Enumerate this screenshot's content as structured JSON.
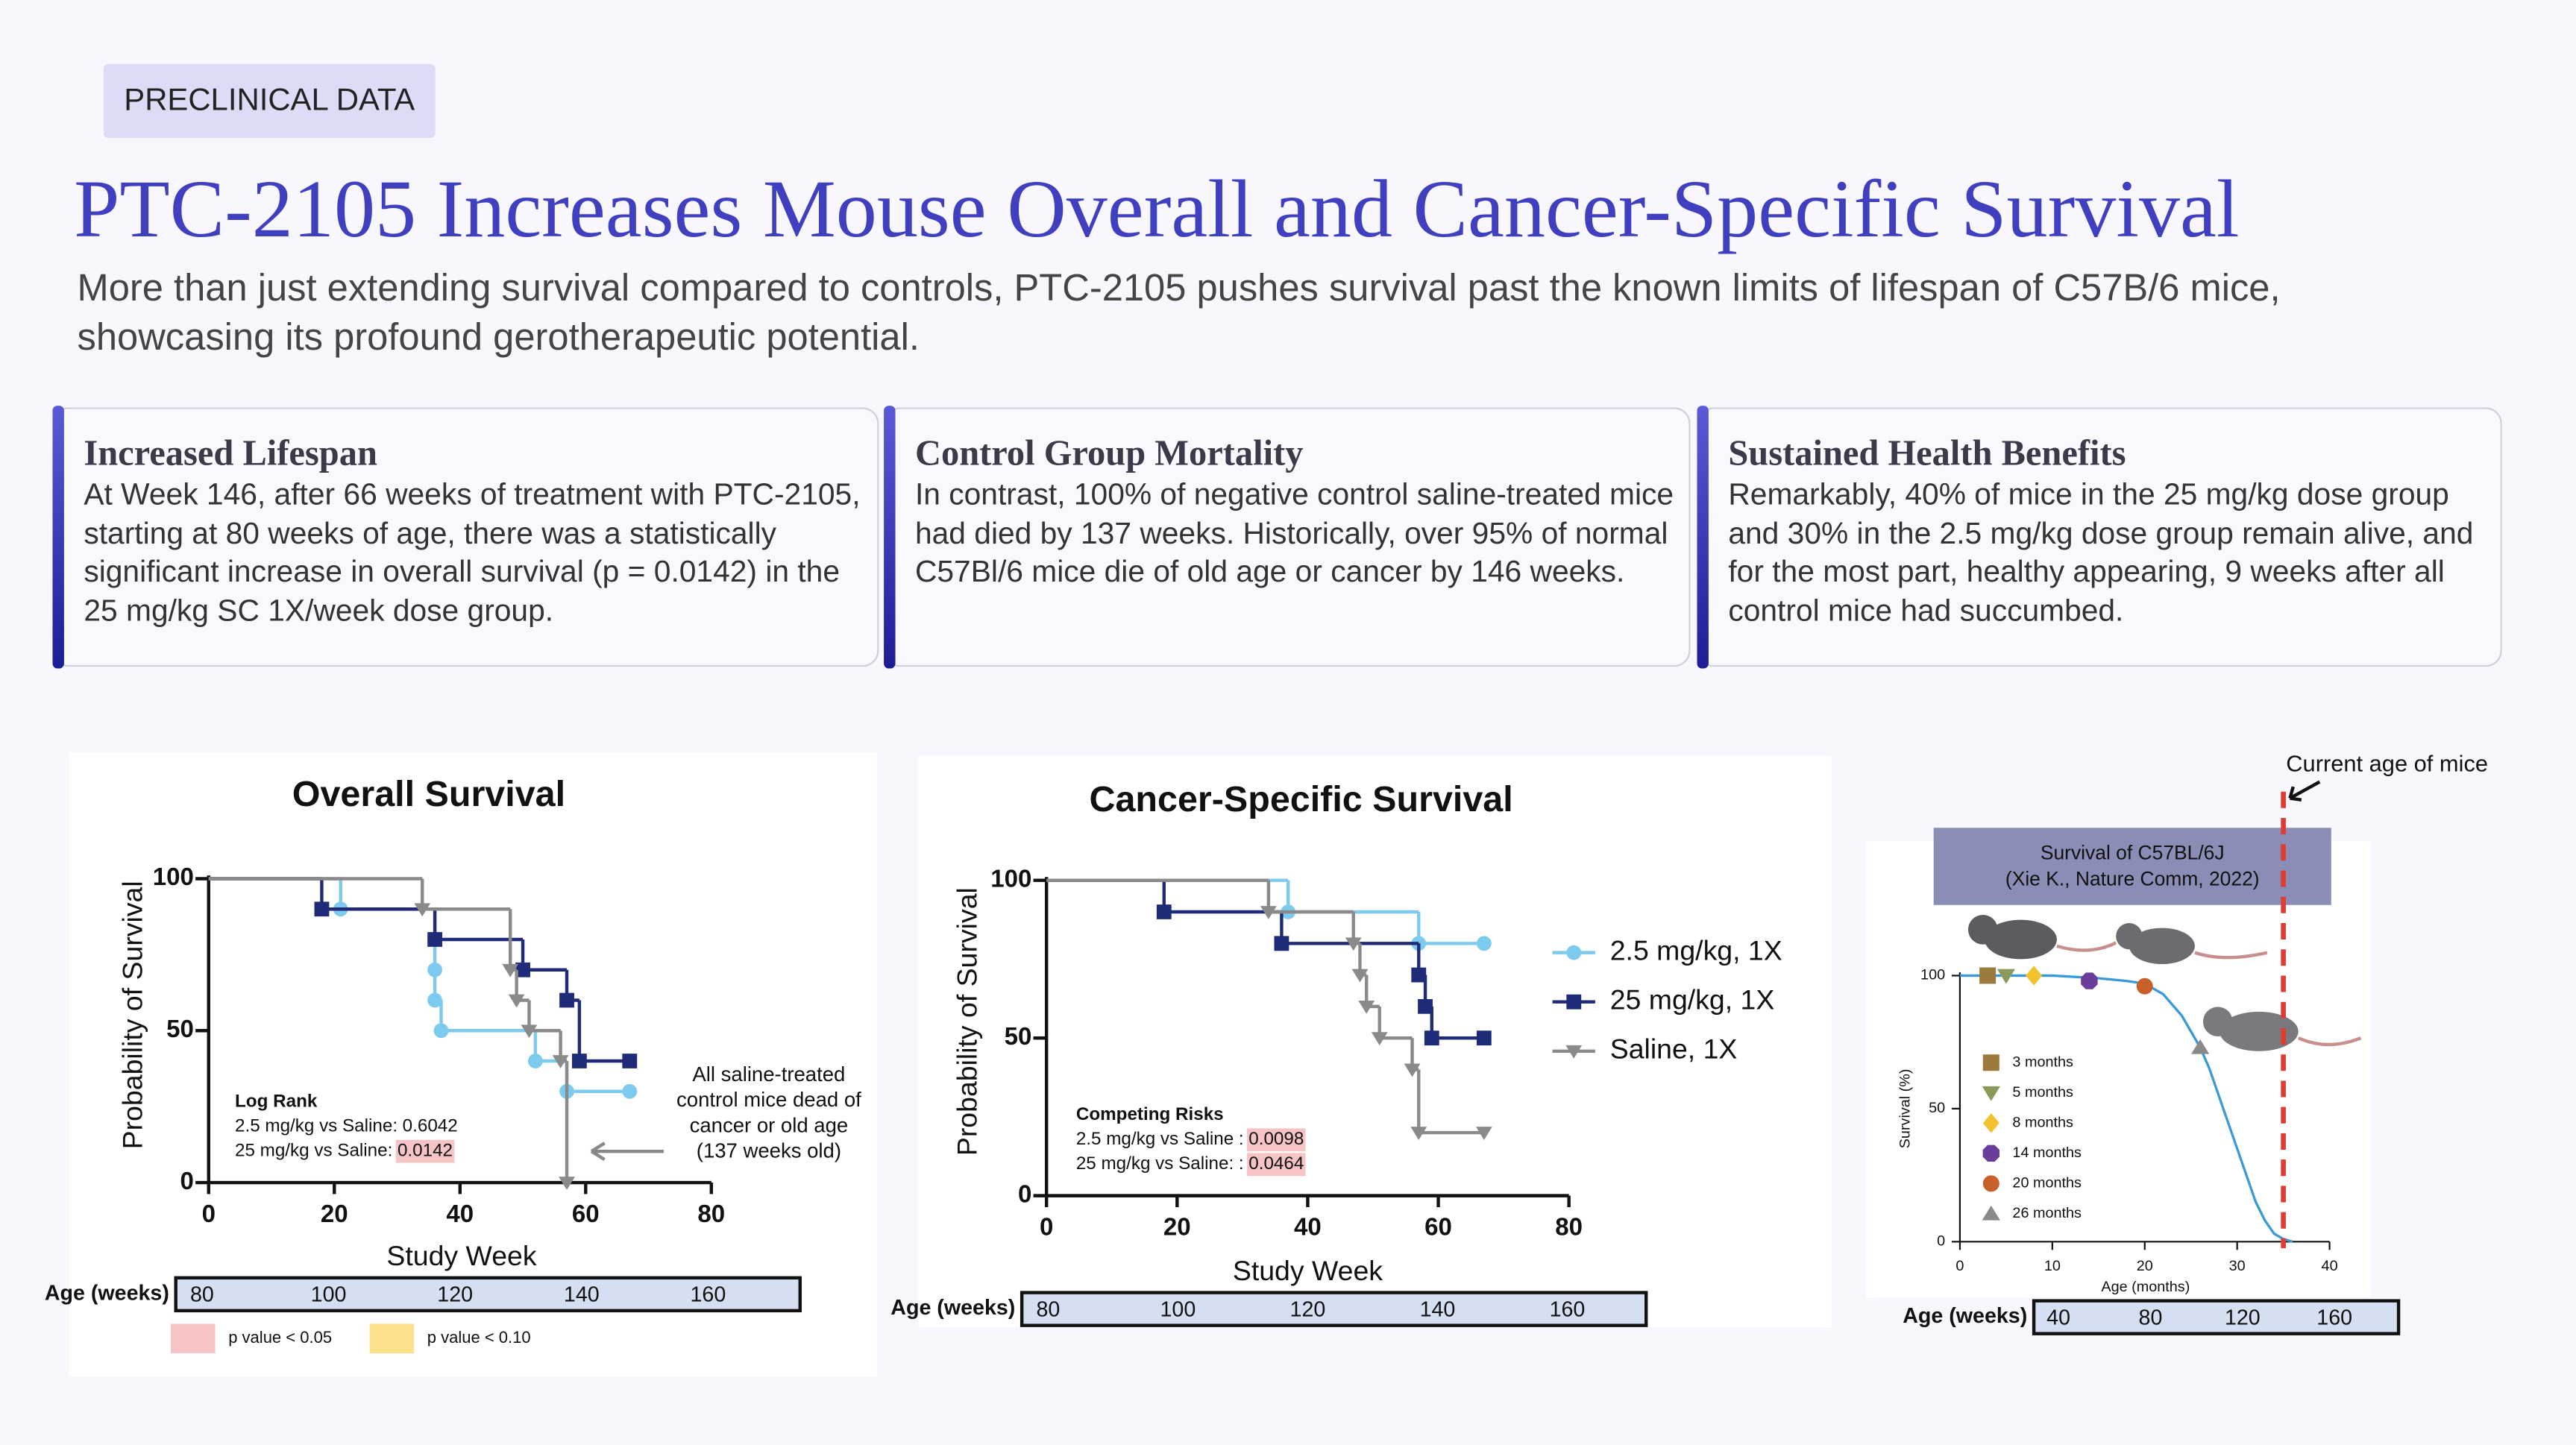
{
  "header": {
    "tag": "PRECLINICAL DATA",
    "title": "PTC-2105 Increases Mouse Overall and Cancer-Specific Survival",
    "subtitle": "More than just extending survival compared to controls, PTC-2105 pushes survival past the known limits of lifespan of C57B/6 mice, showcasing its profound gerotherapeutic potential."
  },
  "cards": [
    {
      "title": "Increased Lifespan",
      "text": "At Week 146, after 66 weeks of treatment with PTC-2105, starting at 80 weeks of age, there was a statistically significant increase in overall survival (p = 0.0142) in the 25 mg/kg SC 1X/week dose group."
    },
    {
      "title": "Control Group Mortality",
      "text": "In contrast, 100% of negative control saline-treated mice had died by 137 weeks. Historically, over 95% of normal C57Bl/6 mice die of old age or cancer by 146 weeks."
    },
    {
      "title": "Sustained Health Benefits",
      "text": "Remarkably, 40% of mice in the 25 mg/kg dose group and 30% in the 2.5 mg/kg dose group remain alive, and for the most part, healthy appearing, 9 weeks after all control mice had succumbed."
    }
  ],
  "chart_data": [
    {
      "type": "step",
      "title": "Overall Survival",
      "xlabel": "Study Week",
      "ylabel": "Probability of Survival",
      "xlim": [
        0,
        80
      ],
      "ylim": [
        0,
        100
      ],
      "xticks": [
        0,
        20,
        40,
        60,
        80
      ],
      "yticks": [
        0,
        50,
        100
      ],
      "series": [
        {
          "name": "2.5 mg/kg, 1X",
          "color": "#7ccbef",
          "marker": "circle",
          "x": [
            0,
            21,
            36,
            36,
            36,
            37,
            52,
            57,
            67
          ],
          "values": [
            100,
            90,
            80,
            70,
            60,
            50,
            40,
            30,
            30
          ]
        },
        {
          "name": "25 mg/kg, 1X",
          "color": "#1f2b78",
          "marker": "square",
          "x": [
            0,
            18,
            36,
            50,
            57,
            59,
            67
          ],
          "values": [
            100,
            90,
            80,
            70,
            60,
            40,
            40
          ]
        },
        {
          "name": "Saline, 1X",
          "color": "#8a8a8a",
          "marker": "triangle-down",
          "x": [
            0,
            34,
            48,
            49,
            51,
            56,
            57
          ],
          "values": [
            100,
            90,
            70,
            60,
            50,
            40,
            0
          ]
        }
      ],
      "stats": {
        "title": "Log Rank",
        "rows": [
          {
            "label": "2.5 mg/kg vs Saline:",
            "value": 0.6042
          },
          {
            "label": "25 mg/kg vs Saline:",
            "value": 0.0142
          }
        ]
      },
      "note": [
        "All saline-treated",
        "control mice dead of",
        "cancer or old age",
        "(137 weeks old)"
      ],
      "age_axis": {
        "label": "Age (weeks)",
        "ticks": [
          80,
          100,
          120,
          140,
          160
        ]
      },
      "significance": [
        {
          "label": "p value < 0.05",
          "threshold": 0.05,
          "color": "#f6c4c4"
        },
        {
          "label": "p value < 0.10",
          "threshold": 0.1,
          "color": "#fde08c"
        }
      ]
    },
    {
      "type": "step",
      "title": "Cancer-Specific Survival",
      "xlabel": "Study Week",
      "ylabel": "Probability of Survival",
      "xlim": [
        0,
        80
      ],
      "ylim": [
        0,
        100
      ],
      "xticks": [
        0,
        20,
        40,
        60,
        80
      ],
      "yticks": [
        0,
        50,
        100
      ],
      "series": [
        {
          "name": "2.5 mg/kg, 1X",
          "color": "#7ccbef",
          "marker": "circle",
          "x": [
            0,
            37,
            57,
            67
          ],
          "values": [
            100,
            90,
            80,
            80
          ]
        },
        {
          "name": "25 mg/kg, 1X",
          "color": "#1f2b78",
          "marker": "square",
          "x": [
            0,
            18,
            36,
            57,
            58,
            59,
            67
          ],
          "values": [
            100,
            90,
            80,
            70,
            60,
            50,
            50
          ]
        },
        {
          "name": "Saline, 1X",
          "color": "#8a8a8a",
          "marker": "triangle-down",
          "x": [
            0,
            34,
            47,
            48,
            49,
            51,
            56,
            57,
            67
          ],
          "values": [
            100,
            90,
            80,
            70,
            60,
            50,
            40,
            20,
            20
          ]
        }
      ],
      "stats": {
        "title": "Competing Risks",
        "rows": [
          {
            "label": "2.5 mg/kg vs Saline :",
            "value": 0.0098
          },
          {
            "label": "25 mg/kg vs Saline: :",
            "value": 0.0464
          }
        ]
      },
      "age_axis": {
        "label": "Age (weeks)",
        "ticks": [
          80,
          100,
          120,
          140,
          160
        ]
      }
    },
    {
      "type": "line",
      "title": "Survival of C57BL/6J",
      "subtitle": "(Xie K., Nature Comm, 2022)",
      "xlabel": "Age (months)",
      "ylabel": "Survival (%)",
      "xlim": [
        0,
        40
      ],
      "ylim": [
        0,
        100
      ],
      "xticks": [
        0,
        10,
        20,
        30,
        40
      ],
      "yticks": [
        0,
        50,
        100
      ],
      "series": [
        {
          "color": "#3a9ad9",
          "x": [
            0,
            10,
            15,
            18,
            20,
            22,
            24,
            26,
            27,
            28,
            29,
            30,
            31,
            32,
            33,
            34,
            35,
            36
          ],
          "values": [
            100,
            100,
            99,
            98,
            97,
            93,
            85,
            73,
            65,
            55,
            45,
            35,
            25,
            15,
            8,
            3,
            1,
            0
          ]
        }
      ],
      "points": [
        {
          "label": "3 months",
          "x": 3,
          "y": 100,
          "color": "#9c7a3c",
          "marker": "square"
        },
        {
          "label": "5 months",
          "x": 5,
          "y": 100,
          "color": "#8a9a5b",
          "marker": "triangle-down"
        },
        {
          "label": "8 months",
          "x": 8,
          "y": 100,
          "color": "#f2c12e",
          "marker": "diamond"
        },
        {
          "label": "14 months",
          "x": 14,
          "y": 98,
          "color": "#6a3d9a",
          "marker": "octagon"
        },
        {
          "label": "20 months",
          "x": 20,
          "y": 96,
          "color": "#c8602a",
          "marker": "circle"
        },
        {
          "label": "26 months",
          "x": 26,
          "y": 73,
          "color": "#8a8a8a",
          "marker": "triangle-up"
        }
      ],
      "reference_line": {
        "x": 35,
        "label": "Current age of mice",
        "color": "#e03c31"
      },
      "age_axis": {
        "label": "Age (weeks)",
        "ticks": [
          40,
          80,
          120,
          160
        ]
      }
    }
  ]
}
